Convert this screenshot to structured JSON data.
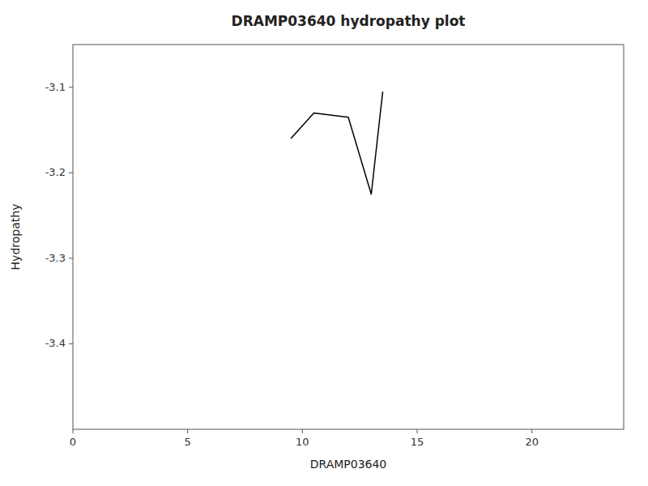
{
  "chart_data": {
    "type": "line",
    "title": "DRAMP03640 hydropathy plot",
    "xlabel": "DRAMP03640",
    "ylabel": "Hydropathy",
    "x": [
      9.5,
      10.5,
      12.0,
      13.0,
      13.5
    ],
    "values": [
      -3.16,
      -3.13,
      -3.135,
      -3.225,
      -3.105
    ],
    "color": "#000000",
    "xlim": [
      0,
      24
    ],
    "ylim": [
      -3.5,
      -3.05
    ],
    "xticks": [
      0,
      5,
      10,
      15,
      20
    ],
    "yticks": [
      -3.4,
      -3.3,
      -3.2,
      -3.1
    ],
    "grid": false
  }
}
